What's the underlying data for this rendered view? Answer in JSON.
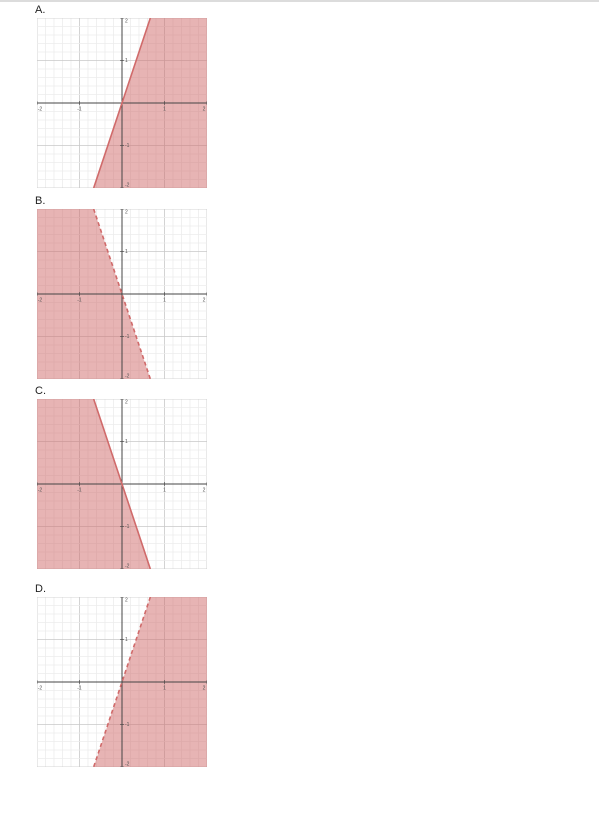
{
  "options": [
    {
      "label": "A.",
      "graph": {
        "xlim": [
          -2,
          2
        ],
        "ylim": [
          -2,
          2
        ],
        "xticks": [
          -2,
          -1,
          1,
          2
        ],
        "yticks": [
          -2,
          -1,
          1,
          2
        ],
        "grid_step": 0.2,
        "boundary": {
          "slope": 3,
          "intercept": 0
        },
        "dashed": false,
        "shade": "right",
        "color": "#d06a6a"
      }
    },
    {
      "label": "B.",
      "graph": {
        "xlim": [
          -2,
          2
        ],
        "ylim": [
          -2,
          2
        ],
        "xticks": [
          -2,
          -1,
          1,
          2
        ],
        "yticks": [
          -2,
          -1,
          1,
          2
        ],
        "grid_step": 0.2,
        "boundary": {
          "slope": -3,
          "intercept": 0
        },
        "dashed": true,
        "shade": "left",
        "color": "#d06a6a"
      }
    },
    {
      "label": "C.",
      "graph": {
        "xlim": [
          -2,
          2
        ],
        "ylim": [
          -2,
          2
        ],
        "xticks": [
          -2,
          -1,
          1,
          2
        ],
        "yticks": [
          -2,
          -1,
          1,
          2
        ],
        "grid_step": 0.2,
        "boundary": {
          "slope": -3,
          "intercept": 0
        },
        "dashed": false,
        "shade": "left",
        "color": "#d06a6a"
      }
    },
    {
      "label": "D.",
      "graph": {
        "xlim": [
          -2,
          2
        ],
        "ylim": [
          -2,
          2
        ],
        "xticks": [
          -2,
          -1,
          1,
          2
        ],
        "yticks": [
          -2,
          -1,
          1,
          2
        ],
        "grid_step": 0.2,
        "boundary": {
          "slope": 3,
          "intercept": 0
        },
        "dashed": true,
        "shade": "right",
        "color": "#d06a6a"
      }
    }
  ]
}
